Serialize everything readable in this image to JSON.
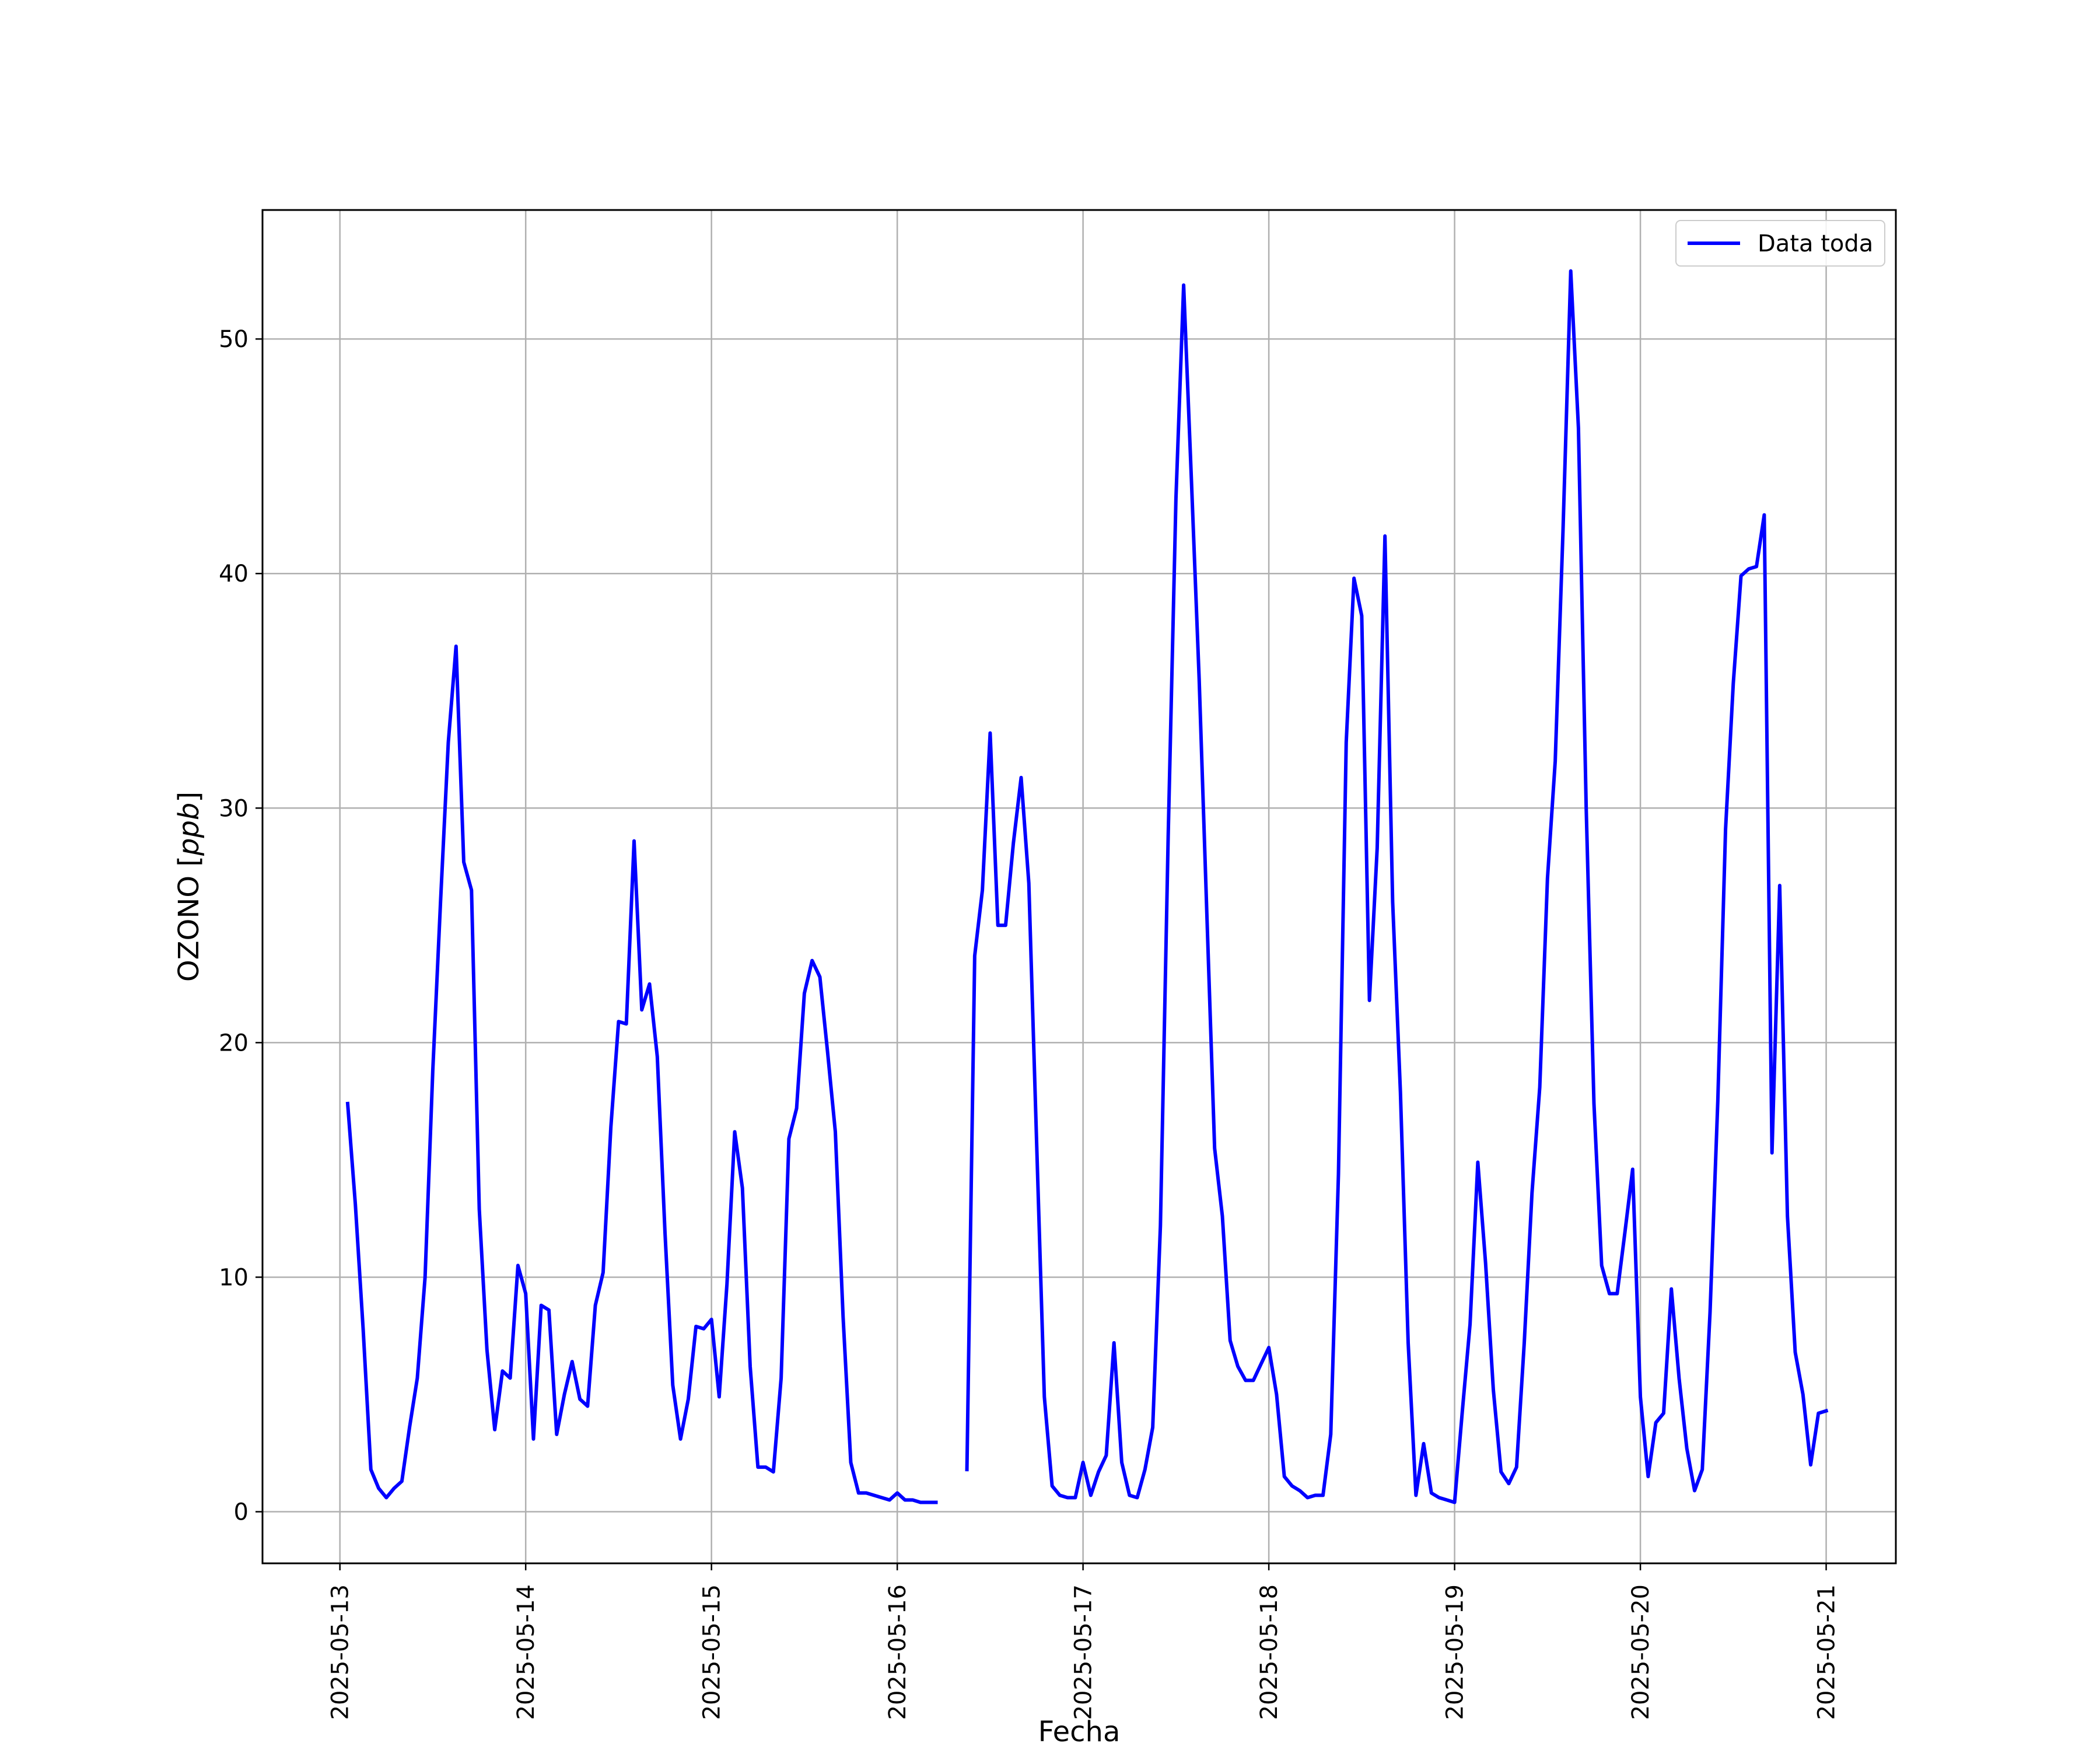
{
  "chart_data": {
    "type": "line",
    "title": "",
    "xlabel": "Fecha",
    "ylabel": "OZONO [ppb]",
    "ylabel_main": "OZONO ",
    "ylabel_unit": "ppb",
    "xlim": [
      "2025-05-12T14:00",
      "2025-05-21T09:00"
    ],
    "ylim": [
      -2.2,
      55.5
    ],
    "x_ticks": [
      "2025-05-13",
      "2025-05-14",
      "2025-05-15",
      "2025-05-16",
      "2025-05-17",
      "2025-05-18",
      "2025-05-19",
      "2025-05-20",
      "2025-05-21"
    ],
    "y_ticks": [
      0,
      10,
      20,
      30,
      40,
      50
    ],
    "grid": true,
    "legend_position": "top-right",
    "series": [
      {
        "name": "Data toda",
        "color": "#0000ff",
        "points": [
          [
            "2025-05-13T01:00",
            17.4
          ],
          [
            "2025-05-13T02:00",
            13.1
          ],
          [
            "2025-05-13T03:00",
            7.8
          ],
          [
            "2025-05-13T04:00",
            1.8
          ],
          [
            "2025-05-13T05:00",
            1.0
          ],
          [
            "2025-05-13T06:00",
            0.6
          ],
          [
            "2025-05-13T07:00",
            1.0
          ],
          [
            "2025-05-13T08:00",
            1.3
          ],
          [
            "2025-05-13T09:00",
            3.6
          ],
          [
            "2025-05-13T10:00",
            5.7
          ],
          [
            "2025-05-13T11:00",
            10.0
          ],
          [
            "2025-05-13T12:00",
            18.8
          ],
          [
            "2025-05-13T13:00",
            26.0
          ],
          [
            "2025-05-13T14:00",
            32.8
          ],
          [
            "2025-05-13T15:00",
            36.9
          ],
          [
            "2025-05-13T16:00",
            27.7
          ],
          [
            "2025-05-13T17:00",
            26.5
          ],
          [
            "2025-05-13T18:00",
            12.9
          ],
          [
            "2025-05-13T19:00",
            6.9
          ],
          [
            "2025-05-13T20:00",
            3.5
          ],
          [
            "2025-05-13T21:00",
            6.0
          ],
          [
            "2025-05-13T22:00",
            5.7
          ],
          [
            "2025-05-13T23:00",
            10.5
          ],
          [
            "2025-05-14T00:00",
            9.3
          ],
          [
            "2025-05-14T01:00",
            3.1
          ],
          [
            "2025-05-14T02:00",
            8.8
          ],
          [
            "2025-05-14T03:00",
            8.6
          ],
          [
            "2025-05-14T04:00",
            3.3
          ],
          [
            "2025-05-14T05:00",
            5.0
          ],
          [
            "2025-05-14T06:00",
            6.4
          ],
          [
            "2025-05-14T07:00",
            4.8
          ],
          [
            "2025-05-14T08:00",
            4.5
          ],
          [
            "2025-05-14T09:00",
            8.8
          ],
          [
            "2025-05-14T10:00",
            10.2
          ],
          [
            "2025-05-14T11:00",
            16.4
          ],
          [
            "2025-05-14T12:00",
            20.9
          ],
          [
            "2025-05-14T13:00",
            20.8
          ],
          [
            "2025-05-14T14:00",
            28.6
          ],
          [
            "2025-05-14T15:00",
            21.4
          ],
          [
            "2025-05-14T16:00",
            22.5
          ],
          [
            "2025-05-14T17:00",
            19.4
          ],
          [
            "2025-05-14T18:00",
            11.9
          ],
          [
            "2025-05-14T19:00",
            5.4
          ],
          [
            "2025-05-14T20:00",
            3.1
          ],
          [
            "2025-05-14T21:00",
            4.8
          ],
          [
            "2025-05-14T22:00",
            7.9
          ],
          [
            "2025-05-14T23:00",
            7.8
          ],
          [
            "2025-05-15T00:00",
            8.2
          ],
          [
            "2025-05-15T01:00",
            4.9
          ],
          [
            "2025-05-15T02:00",
            9.7
          ],
          [
            "2025-05-15T03:00",
            16.2
          ],
          [
            "2025-05-15T04:00",
            13.8
          ],
          [
            "2025-05-15T05:00",
            6.2
          ],
          [
            "2025-05-15T06:00",
            1.9
          ],
          [
            "2025-05-15T07:00",
            1.9
          ],
          [
            "2025-05-15T08:00",
            1.7
          ],
          [
            "2025-05-15T09:00",
            5.7
          ],
          [
            "2025-05-15T10:00",
            15.9
          ],
          [
            "2025-05-15T11:00",
            17.2
          ],
          [
            "2025-05-15T12:00",
            22.1
          ],
          [
            "2025-05-15T13:00",
            23.5
          ],
          [
            "2025-05-15T14:00",
            22.8
          ],
          [
            "2025-05-15T15:00",
            19.6
          ],
          [
            "2025-05-15T16:00",
            16.2
          ],
          [
            "2025-05-15T17:00",
            8.3
          ],
          [
            "2025-05-15T18:00",
            2.1
          ],
          [
            "2025-05-15T19:00",
            0.8
          ],
          [
            "2025-05-15T20:00",
            0.8
          ],
          [
            "2025-05-15T21:00",
            0.7
          ],
          [
            "2025-05-15T22:00",
            0.6
          ],
          [
            "2025-05-15T23:00",
            0.5
          ],
          [
            "2025-05-16T00:00",
            0.8
          ],
          [
            "2025-05-16T01:00",
            0.5
          ],
          [
            "2025-05-16T02:00",
            0.5
          ],
          [
            "2025-05-16T03:00",
            0.4
          ],
          [
            "2025-05-16T04:00",
            0.4
          ],
          [
            "2025-05-16T05:00",
            0.4
          ],
          null,
          [
            "2025-05-16T09:00",
            1.8
          ],
          [
            "2025-05-16T10:00",
            23.7
          ],
          [
            "2025-05-16T11:00",
            26.5
          ],
          [
            "2025-05-16T12:00",
            33.2
          ],
          [
            "2025-05-16T13:00",
            25.0
          ],
          [
            "2025-05-16T14:00",
            25.0
          ],
          [
            "2025-05-16T15:00",
            28.5
          ],
          [
            "2025-05-16T16:00",
            31.3
          ],
          [
            "2025-05-16T17:00",
            26.8
          ],
          [
            "2025-05-16T18:00",
            15.8
          ],
          [
            "2025-05-16T19:00",
            4.9
          ],
          [
            "2025-05-16T20:00",
            1.1
          ],
          [
            "2025-05-16T21:00",
            0.7
          ],
          [
            "2025-05-16T22:00",
            0.6
          ],
          [
            "2025-05-16T23:00",
            0.6
          ],
          [
            "2025-05-17T00:00",
            2.1
          ],
          [
            "2025-05-17T01:00",
            0.7
          ],
          [
            "2025-05-17T02:00",
            1.7
          ],
          [
            "2025-05-17T03:00",
            2.4
          ],
          [
            "2025-05-17T04:00",
            7.2
          ],
          [
            "2025-05-17T05:00",
            2.1
          ],
          [
            "2025-05-17T06:00",
            0.7
          ],
          [
            "2025-05-17T07:00",
            0.6
          ],
          [
            "2025-05-17T08:00",
            1.8
          ],
          [
            "2025-05-17T09:00",
            3.6
          ],
          [
            "2025-05-17T10:00",
            12.2
          ],
          [
            "2025-05-17T11:00",
            28.8
          ],
          [
            "2025-05-17T12:00",
            43.2
          ],
          [
            "2025-05-17T13:00",
            52.3
          ],
          [
            "2025-05-17T14:00",
            44.0
          ],
          [
            "2025-05-17T15:00",
            35.5
          ],
          [
            "2025-05-17T16:00",
            25.4
          ],
          [
            "2025-05-17T17:00",
            15.5
          ],
          [
            "2025-05-17T18:00",
            12.6
          ],
          [
            "2025-05-17T19:00",
            7.3
          ],
          [
            "2025-05-17T20:00",
            6.2
          ],
          [
            "2025-05-17T21:00",
            5.6
          ],
          [
            "2025-05-17T22:00",
            5.6
          ],
          [
            "2025-05-17T23:00",
            6.3
          ],
          [
            "2025-05-18T00:00",
            7.0
          ],
          [
            "2025-05-18T01:00",
            5.0
          ],
          [
            "2025-05-18T02:00",
            1.5
          ],
          [
            "2025-05-18T03:00",
            1.1
          ],
          [
            "2025-05-18T04:00",
            0.9
          ],
          [
            "2025-05-18T05:00",
            0.6
          ],
          [
            "2025-05-18T06:00",
            0.7
          ],
          [
            "2025-05-18T07:00",
            0.7
          ],
          [
            "2025-05-18T08:00",
            3.3
          ],
          [
            "2025-05-18T09:00",
            14.4
          ],
          [
            "2025-05-18T10:00",
            32.8
          ],
          [
            "2025-05-18T11:00",
            39.8
          ],
          [
            "2025-05-18T12:00",
            38.2
          ],
          [
            "2025-05-18T13:00",
            21.8
          ],
          [
            "2025-05-18T14:00",
            28.3
          ],
          [
            "2025-05-18T15:00",
            41.6
          ],
          [
            "2025-05-18T16:00",
            26.0
          ],
          [
            "2025-05-18T17:00",
            17.9
          ],
          [
            "2025-05-18T18:00",
            7.2
          ],
          [
            "2025-05-18T19:00",
            0.7
          ],
          [
            "2025-05-18T20:00",
            2.9
          ],
          [
            "2025-05-18T21:00",
            0.8
          ],
          [
            "2025-05-18T22:00",
            0.6
          ],
          [
            "2025-05-18T23:00",
            0.5
          ],
          [
            "2025-05-19T00:00",
            0.4
          ],
          [
            "2025-05-19T01:00",
            4.3
          ],
          [
            "2025-05-19T02:00",
            8.0
          ],
          [
            "2025-05-19T03:00",
            14.9
          ],
          [
            "2025-05-19T04:00",
            10.6
          ],
          [
            "2025-05-19T05:00",
            5.2
          ],
          [
            "2025-05-19T06:00",
            1.7
          ],
          [
            "2025-05-19T07:00",
            1.2
          ],
          [
            "2025-05-19T08:00",
            1.9
          ],
          [
            "2025-05-19T09:00",
            7.2
          ],
          [
            "2025-05-19T10:00",
            13.6
          ],
          [
            "2025-05-19T11:00",
            18.1
          ],
          [
            "2025-05-19T12:00",
            27.0
          ],
          [
            "2025-05-19T13:00",
            32.0
          ],
          [
            "2025-05-19T14:00",
            41.8
          ],
          [
            "2025-05-19T15:00",
            52.9
          ],
          [
            "2025-05-19T16:00",
            46.2
          ],
          [
            "2025-05-19T17:00",
            30.0
          ],
          [
            "2025-05-19T18:00",
            17.4
          ],
          [
            "2025-05-19T19:00",
            10.5
          ],
          [
            "2025-05-19T20:00",
            9.3
          ],
          [
            "2025-05-19T21:00",
            9.3
          ],
          [
            "2025-05-19T22:00",
            11.9
          ],
          [
            "2025-05-19T23:00",
            14.6
          ],
          [
            "2025-05-20T00:00",
            4.9
          ],
          [
            "2025-05-20T01:00",
            1.5
          ],
          [
            "2025-05-20T02:00",
            3.8
          ],
          [
            "2025-05-20T03:00",
            4.2
          ],
          [
            "2025-05-20T04:00",
            9.5
          ],
          [
            "2025-05-20T05:00",
            5.7
          ],
          [
            "2025-05-20T06:00",
            2.7
          ],
          [
            "2025-05-20T07:00",
            0.9
          ],
          [
            "2025-05-20T08:00",
            1.8
          ],
          [
            "2025-05-20T09:00",
            8.5
          ],
          [
            "2025-05-20T10:00",
            17.5
          ],
          [
            "2025-05-20T11:00",
            29.1
          ],
          [
            "2025-05-20T12:00",
            35.3
          ],
          [
            "2025-05-20T13:00",
            39.9
          ],
          [
            "2025-05-20T14:00",
            40.2
          ],
          [
            "2025-05-20T15:00",
            40.3
          ],
          [
            "2025-05-20T16:00",
            42.5
          ],
          [
            "2025-05-20T17:00",
            15.3
          ],
          [
            "2025-05-20T18:00",
            26.7
          ],
          [
            "2025-05-20T19:00",
            12.6
          ],
          [
            "2025-05-20T20:00",
            6.8
          ],
          [
            "2025-05-20T21:00",
            5.0
          ],
          [
            "2025-05-20T22:00",
            2.0
          ],
          [
            "2025-05-20T23:00",
            4.2
          ],
          [
            "2025-05-21T00:00",
            4.3
          ]
        ]
      }
    ]
  }
}
